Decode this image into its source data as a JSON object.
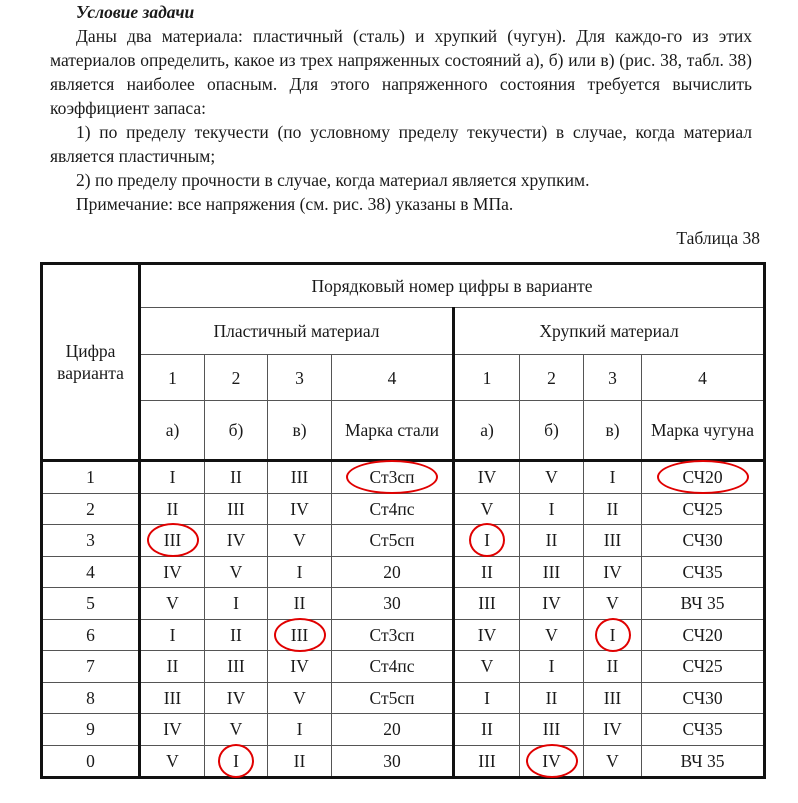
{
  "heading": "Условие задачи",
  "paragraphs": [
    "Даны два материала: пластичный (сталь) и хрупкий (чугун). Для каждо-го из этих материалов определить, какое из трех напряженных состояний а), б) или в) (рис. 38, табл. 38) является наиболее опасным. Для этого напряженного состояния требуется вычислить коэффициент запаса:",
    "1)  по пределу текучести (по условному пределу текучести) в случае, когда материал является пластичным;",
    "2)  по пределу прочности в случае, когда материал является хрупким.",
    "Примечание: все напряжения (см. рис. 38) указаны в МПа."
  ],
  "table_caption": "Таблица 38",
  "table": {
    "row_header": "Цифра варианта",
    "top_header": "Порядковый номер цифры в варианте",
    "group_plastic": "Пластичный материал",
    "group_brittle": "Хрупкий материал",
    "col_numbers": [
      "1",
      "2",
      "3",
      "4",
      "1",
      "2",
      "3",
      "4"
    ],
    "col_subs": [
      "а)",
      "б)",
      "в)",
      "Марка стали",
      "а)",
      "б)",
      "в)",
      "Марка чугуна"
    ],
    "annotation_color": "#e00000",
    "rows": [
      {
        "digit": "1",
        "cells": [
          "I",
          "II",
          "III",
          "Ст3сп",
          "IV",
          "V",
          "I",
          "СЧ20"
        ],
        "circled": [
          3,
          7
        ]
      },
      {
        "digit": "2",
        "cells": [
          "II",
          "III",
          "IV",
          "Ст4пс",
          "V",
          "I",
          "II",
          "СЧ25"
        ],
        "circled": []
      },
      {
        "digit": "3",
        "cells": [
          "III",
          "IV",
          "V",
          "Ст5сп",
          "I",
          "II",
          "III",
          "СЧ30"
        ],
        "circled": [
          0,
          4
        ]
      },
      {
        "digit": "4",
        "cells": [
          "IV",
          "V",
          "I",
          "20",
          "II",
          "III",
          "IV",
          "СЧ35"
        ],
        "circled": []
      },
      {
        "digit": "5",
        "cells": [
          "V",
          "I",
          "II",
          "30",
          "III",
          "IV",
          "V",
          "ВЧ 35"
        ],
        "circled": []
      },
      {
        "digit": "6",
        "cells": [
          "I",
          "II",
          "III",
          "Ст3сп",
          "IV",
          "V",
          "I",
          "СЧ20"
        ],
        "circled": [
          2,
          6
        ]
      },
      {
        "digit": "7",
        "cells": [
          "II",
          "III",
          "IV",
          "Ст4пс",
          "V",
          "I",
          "II",
          "СЧ25"
        ],
        "circled": []
      },
      {
        "digit": "8",
        "cells": [
          "III",
          "IV",
          "V",
          "Ст5сп",
          "I",
          "II",
          "III",
          "СЧ30"
        ],
        "circled": []
      },
      {
        "digit": "9",
        "cells": [
          "IV",
          "V",
          "I",
          "20",
          "II",
          "III",
          "IV",
          "СЧ35"
        ],
        "circled": []
      },
      {
        "digit": "0",
        "cells": [
          "V",
          "I",
          "II",
          "30",
          "III",
          "IV",
          "V",
          "ВЧ 35"
        ],
        "circled": [
          1,
          5
        ]
      }
    ]
  }
}
